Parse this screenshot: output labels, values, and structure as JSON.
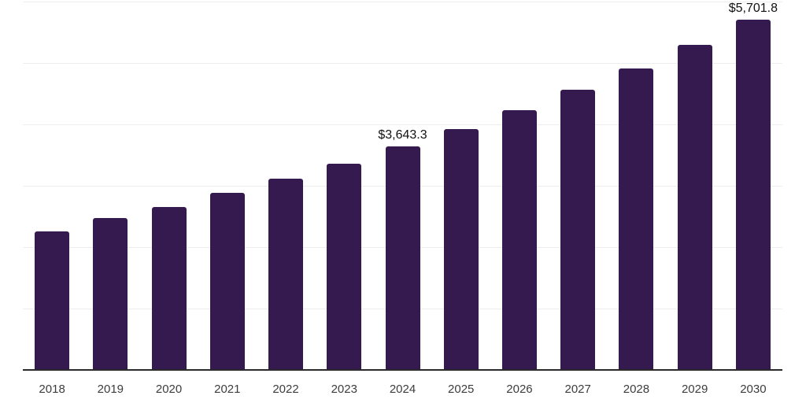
{
  "chart": {
    "background_color": "#ffffff",
    "bar_color": "#341a4f",
    "grid_color": "#ededed",
    "axis_color": "#2a2a2a",
    "tick_label_color": "#3d3d3d",
    "value_label_color": "#111111"
  },
  "chart_data": {
    "type": "bar",
    "title": "",
    "xlabel": "",
    "ylabel": "",
    "categories": [
      "2018",
      "2019",
      "2020",
      "2021",
      "2022",
      "2023",
      "2024",
      "2025",
      "2026",
      "2027",
      "2028",
      "2029",
      "2030"
    ],
    "values": [
      2255,
      2480,
      2660,
      2885,
      3120,
      3365,
      3643.3,
      3926,
      4230,
      4558,
      4912,
      5292,
      5701.8
    ],
    "value_labels": {
      "2024": "$3,643.3",
      "2030": "$5,701.8"
    },
    "ylim": [
      0,
      6000
    ],
    "gridline_step": 1000,
    "grid": true,
    "y_tick_labels_visible": false,
    "legend": "none"
  }
}
